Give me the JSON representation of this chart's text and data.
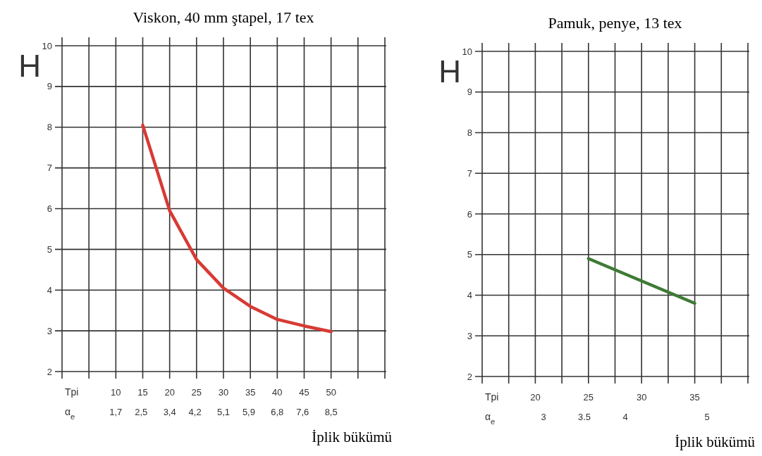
{
  "chart_data": [
    {
      "type": "line",
      "title": "Viskon, 40 mm ştapel, 17 tex",
      "ylabel": "H",
      "xlabel": "İplik bükümü",
      "annotations": [
        "Tpi",
        "α$_{e}$"
      ],
      "x": [
        15,
        20,
        25,
        30,
        35,
        40,
        45,
        50
      ],
      "series": [
        {
          "color": "#d83a34",
          "values": [
            8.05,
            5.95,
            4.75,
            4.05,
            3.6,
            3.28,
            3.12,
            2.98
          ]
        }
      ],
      "xlim": [
        0,
        60
      ],
      "xticks": [
        {
          "value": 0,
          "label": null
        },
        {
          "value": 5,
          "label": null
        },
        10,
        15,
        20,
        25,
        30,
        35,
        40,
        45,
        50,
        {
          "value": 55,
          "label": null
        },
        {
          "value": 60,
          "label": null
        }
      ],
      "x2lim": [
        0,
        10.2
      ],
      "x2ticks": [
        {
          "value": 1.7,
          "label": "1,7"
        },
        {
          "value": 2.5,
          "label": "2,5"
        },
        {
          "value": 3.4,
          "label": "3,4"
        },
        {
          "value": 4.2,
          "label": "4,2"
        },
        {
          "value": 5.1,
          "label": "5,1"
        },
        {
          "value": 5.9,
          "label": "5,9"
        },
        {
          "value": 6.8,
          "label": "6,8"
        },
        {
          "value": 7.6,
          "label": "7,6"
        },
        {
          "value": 8.5,
          "label": "8,5"
        }
      ],
      "ylim": [
        2,
        10
      ],
      "yticks": [
        2,
        3,
        4,
        5,
        6,
        7,
        8,
        9,
        10
      ],
      "grid": true,
      "marker": "none",
      "line_style": "solid"
    },
    {
      "type": "line",
      "title": "Pamuk, penye, 13 tex",
      "ylabel": "H",
      "xlabel": "İplik bükümü",
      "annotations": [
        "Tpi",
        "α$_{e}$"
      ],
      "x": [
        25,
        35
      ],
      "series": [
        {
          "color": "#3f7a36",
          "values": [
            4.9,
            3.8
          ]
        }
      ],
      "xlim": [
        15,
        40
      ],
      "xticks": [
        {
          "value": 15,
          "label": null
        },
        {
          "value": 17.5,
          "label": null
        },
        20,
        {
          "value": 22.5,
          "label": null
        },
        25,
        {
          "value": 27.5,
          "label": null
        },
        30,
        {
          "value": 32.5,
          "label": null
        },
        35,
        {
          "value": 37.5,
          "label": null
        },
        {
          "value": 40,
          "label": null
        }
      ],
      "x2lim": [
        2.25,
        5.5
      ],
      "x2ticks": [
        3,
        3.5,
        4,
        5
      ],
      "ylim": [
        2,
        10
      ],
      "yticks": [
        2,
        3,
        4,
        5,
        6,
        7,
        8,
        9,
        10
      ],
      "grid": true,
      "marker": "none",
      "line_style": "solid"
    }
  ]
}
